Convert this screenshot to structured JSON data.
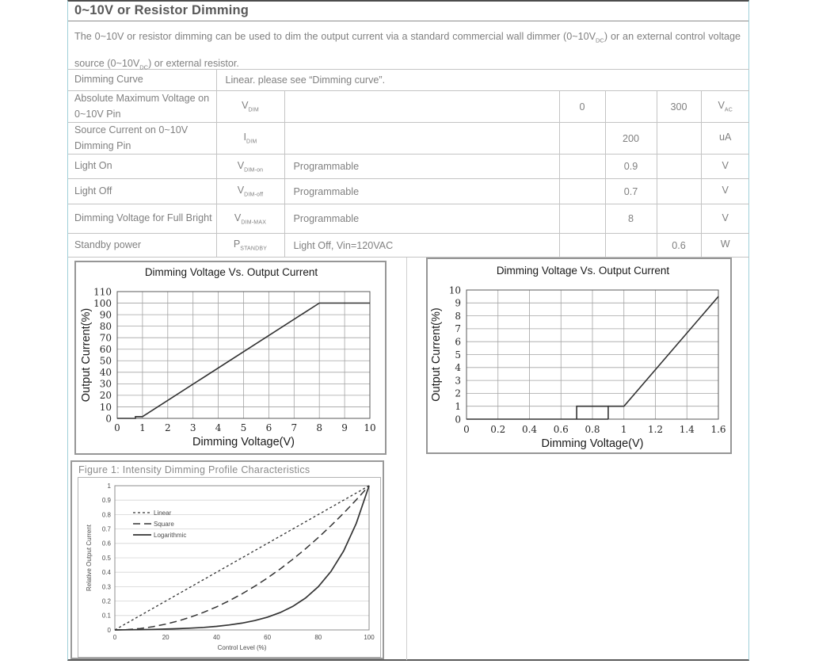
{
  "page": {
    "title": "0~10V or Resistor Dimming",
    "description": {
      "part1": "The 0~10V or resistor dimming can be used to dim the output current via a standard commercial wall dimmer (0~10V",
      "sub1": "DC",
      "part2": ") or an external control voltage source (0~10V",
      "sub2": "DC",
      "part3": ") or external resistor."
    }
  },
  "table": {
    "rows": [
      {
        "param": "Dimming Curve",
        "note": "Linear. please see “Dimming curve”."
      },
      {
        "param": "Absolute Maximum Voltage on 0~10V Pin",
        "sym": "V",
        "sym_sub": "DIM",
        "cond": "",
        "min": "0",
        "typ": "",
        "max": "300",
        "unit": "V",
        "unit_sub": "AC"
      },
      {
        "param": "Source Current on 0~10V Dimming Pin",
        "sym": "I",
        "sym_sub": "DIM",
        "cond": "",
        "min": "",
        "typ": "200",
        "max": "",
        "unit": "uA",
        "unit_sub": ""
      },
      {
        "param": "Light On",
        "sym": "V",
        "sym_sub": "DIM-on",
        "cond": "Programmable",
        "min": "",
        "typ": "0.9",
        "max": "",
        "unit": "V",
        "unit_sub": ""
      },
      {
        "param": "Light Off",
        "sym": "V",
        "sym_sub": "DIM-off",
        "cond": "Programmable",
        "min": "",
        "typ": "0.7",
        "max": "",
        "unit": "V",
        "unit_sub": ""
      },
      {
        "param": "Dimming Voltage for Full Bright",
        "sym": "V",
        "sym_sub": "DIM-MAX",
        "cond": "Programmable",
        "min": "",
        "typ": "8",
        "max": "",
        "unit": "V",
        "unit_sub": ""
      },
      {
        "param": "Standby power",
        "sym": "P",
        "sym_sub": "STANDBY",
        "cond": "Light Off, Vin=120VAC",
        "min": "",
        "typ": "",
        "max": "0.6",
        "unit": "W",
        "unit_sub": ""
      }
    ]
  },
  "chart_data": [
    {
      "type": "line",
      "title": "Dimming Voltage Vs. Output Current",
      "xlabel": "Dimming Voltage(V)",
      "ylabel": "Output Current(%)",
      "xlim": [
        0,
        10
      ],
      "ylim": [
        0,
        110
      ],
      "xticks": [
        0,
        1,
        2,
        3,
        4,
        5,
        6,
        7,
        8,
        9,
        10
      ],
      "yticks": [
        0,
        10,
        20,
        30,
        40,
        50,
        60,
        70,
        80,
        90,
        100,
        110
      ],
      "grid": "both",
      "legend_position": "none",
      "series": [
        {
          "name": "output-current",
          "dash": null,
          "width": 1.6,
          "segments": [
            [
              [
                0,
                0
              ],
              [
                0.72,
                0
              ],
              [
                0.72,
                1.5
              ],
              [
                1,
                1.5
              ],
              [
                8,
                100
              ],
              [
                10,
                100
              ]
            ]
          ]
        }
      ]
    },
    {
      "type": "line",
      "title": "Dimming Voltage Vs. Output Current",
      "xlabel": "Dimming Voltage(V)",
      "ylabel": "Output Current(%)",
      "xlim": [
        0,
        1.6
      ],
      "ylim": [
        0,
        10
      ],
      "xticks": [
        0,
        0.2,
        0.4,
        0.6,
        0.8,
        1,
        1.2,
        1.4,
        1.6
      ],
      "xtick_labels": [
        "0",
        "0.2",
        "0.4",
        "0.6",
        "0.8",
        "1",
        "1.2",
        "1.4",
        "1.6"
      ],
      "yticks": [
        0,
        1,
        2,
        3,
        4,
        5,
        6,
        7,
        8,
        9,
        10
      ],
      "grid": "both",
      "legend_position": "none",
      "series": [
        {
          "name": "output-current-hysteresis",
          "dash": null,
          "width": 1.6,
          "segments": [
            [
              [
                0,
                0
              ],
              [
                0.9,
                0
              ]
            ],
            [
              [
                0.7,
                0
              ],
              [
                0.7,
                1
              ],
              [
                0.9,
                1
              ],
              [
                0.9,
                0
              ]
            ],
            [
              [
                0.9,
                1
              ],
              [
                1,
                1
              ],
              [
                1.6,
                9.5
              ]
            ]
          ]
        }
      ]
    },
    {
      "type": "line",
      "title": "Figure 1: Intensity Dimming Profile Characteristics",
      "xlabel": "Control Level (%)",
      "ylabel": "Relative Output Current",
      "xlim": [
        0,
        100
      ],
      "ylim": [
        0,
        1
      ],
      "xticks": [
        0,
        20,
        40,
        60,
        80,
        100
      ],
      "yticks": [
        0,
        0.1,
        0.2,
        0.3,
        0.4,
        0.5,
        0.6,
        0.7,
        0.8,
        0.9,
        1
      ],
      "ytick_labels": [
        "0",
        "0.1",
        "0.2",
        "0.3",
        "0.4",
        "0.5",
        "0.6",
        "0.7",
        "0.8",
        "0.9",
        "1"
      ],
      "grid": "h",
      "legend": [
        "Linear",
        "Square",
        "Logarithmic"
      ],
      "legend_position": "top-left",
      "series": [
        {
          "name": "Linear",
          "dash": "3,3",
          "width": 1.3,
          "segments": [
            [
              [
                0,
                0
              ],
              [
                100,
                1
              ]
            ]
          ]
        },
        {
          "name": "Square",
          "dash": "9,5",
          "width": 1.5,
          "segments": [
            [
              [
                0,
                0
              ],
              [
                5,
                0.0025
              ],
              [
                10,
                0.01
              ],
              [
                15,
                0.0225
              ],
              [
                20,
                0.04
              ],
              [
                25,
                0.0625
              ],
              [
                30,
                0.09
              ],
              [
                35,
                0.1225
              ],
              [
                40,
                0.16
              ],
              [
                45,
                0.2025
              ],
              [
                50,
                0.25
              ],
              [
                55,
                0.3025
              ],
              [
                60,
                0.36
              ],
              [
                65,
                0.4225
              ],
              [
                70,
                0.49
              ],
              [
                75,
                0.5625
              ],
              [
                80,
                0.64
              ],
              [
                85,
                0.7225
              ],
              [
                90,
                0.81
              ],
              [
                95,
                0.9025
              ],
              [
                100,
                1
              ]
            ]
          ]
        },
        {
          "name": "Logarithmic",
          "dash": null,
          "width": 1.7,
          "segments": [
            [
              [
                0,
                0
              ],
              [
                5,
                0.0009
              ],
              [
                10,
                0.002
              ],
              [
                15,
                0.0036
              ],
              [
                20,
                0.0058
              ],
              [
                25,
                0.0087
              ],
              [
                30,
                0.0126
              ],
              [
                35,
                0.0178
              ],
              [
                40,
                0.0249
              ],
              [
                45,
                0.0345
              ],
              [
                50,
                0.0474
              ],
              [
                55,
                0.0649
              ],
              [
                60,
                0.0885
              ],
              [
                65,
                0.1203
              ],
              [
                70,
                0.1632
              ],
              [
                75,
                0.2212
              ],
              [
                80,
                0.2995
              ],
              [
                85,
                0.4051
              ],
              [
                90,
                0.5477
              ],
              [
                95,
                0.7402
              ],
              [
                100,
                1
              ]
            ]
          ]
        }
      ]
    }
  ]
}
